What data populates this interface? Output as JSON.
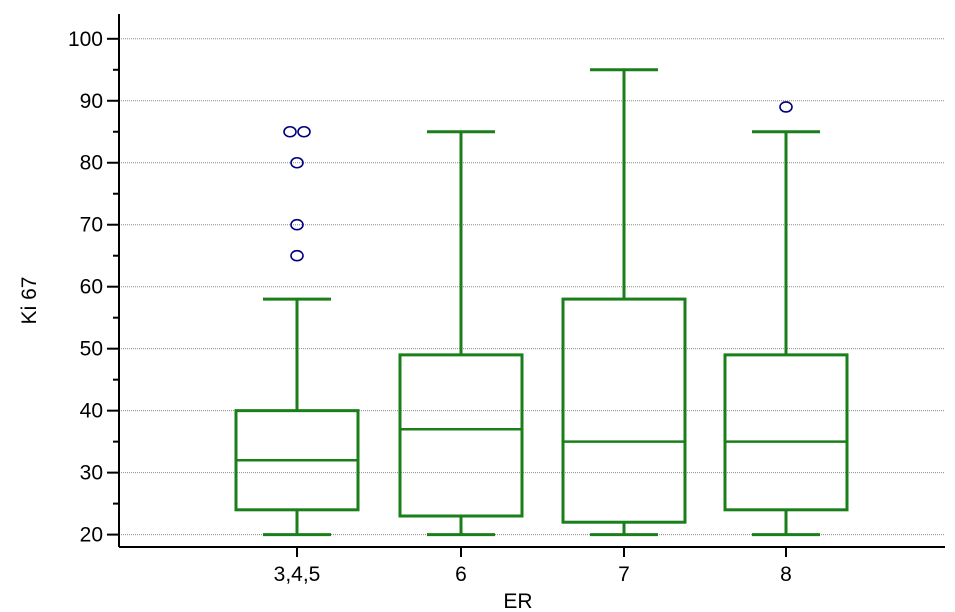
{
  "chart_data": {
    "type": "box",
    "title": "",
    "xlabel": "ER",
    "ylabel": "Ki 67",
    "categories": [
      "3,4,5",
      "6",
      "7",
      "8"
    ],
    "ylim": [
      18,
      104
    ],
    "yticks": [
      20,
      30,
      40,
      50,
      60,
      70,
      80,
      90,
      100
    ],
    "grid": true,
    "box_color": "#1a7f1a",
    "outlier_color": "#000080",
    "boxes": [
      {
        "category": "3,4,5",
        "whisker_low": 20,
        "q1": 24,
        "median": 32,
        "q3": 40,
        "whisker_high": 58,
        "outliers": [
          85,
          85,
          80,
          70,
          65
        ]
      },
      {
        "category": "6",
        "whisker_low": 20,
        "q1": 23,
        "median": 37,
        "q3": 49,
        "whisker_high": 85,
        "outliers": []
      },
      {
        "category": "7",
        "whisker_low": 20,
        "q1": 22,
        "median": 35,
        "q3": 58,
        "whisker_high": 95,
        "outliers": []
      },
      {
        "category": "8",
        "whisker_low": 20,
        "q1": 24,
        "median": 35,
        "q3": 49,
        "whisker_high": 85,
        "outliers": [
          89
        ]
      }
    ]
  }
}
